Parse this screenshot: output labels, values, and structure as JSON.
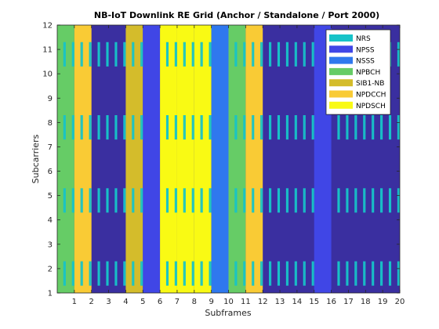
{
  "chart_data": {
    "type": "heatmap",
    "title": "NB-IoT Downlink RE Grid (Anchor / Standalone / Port 2000)",
    "xlabel": "Subframes",
    "ylabel": "Subcarriers",
    "xlim": [
      0,
      20
    ],
    "ylim": [
      1,
      12
    ],
    "xticks": [
      "1",
      "2",
      "3",
      "4",
      "5",
      "6",
      "7",
      "8",
      "9",
      "10",
      "11",
      "12",
      "13",
      "14",
      "15",
      "16",
      "17",
      "18",
      "19",
      "20"
    ],
    "yticks": [
      "1",
      "2",
      "3",
      "4",
      "5",
      "6",
      "7",
      "8",
      "9",
      "10",
      "11",
      "12"
    ],
    "legend_position": "top-right",
    "background_color": "#3a2fa0",
    "colors": {
      "NRS": "#17c3c8",
      "NPSS": "#4046e6",
      "NSSS": "#2f78ee",
      "NPBCH": "#66cc66",
      "SIB1-NB": "#d4bc2b",
      "NPDCCH": "#f9cb35",
      "NPDSCH": "#f9fa14"
    },
    "legend": [
      "NRS",
      "NPSS",
      "NSSS",
      "NPBCH",
      "SIB1-NB",
      "NPDCCH",
      "NPDSCH"
    ],
    "subframe_channels": [
      "NPBCH",
      "NPDCCH",
      "",
      "",
      "SIB1-NB",
      "NPSS",
      "NPDSCH",
      "NPDSCH",
      "NPDSCH",
      "NSSS",
      "NPBCH",
      "NPDCCH",
      "",
      "",
      "",
      "NPSS",
      "",
      "",
      "",
      ""
    ],
    "nrs_subcarrier_bands": [
      [
        1.3,
        2.3
      ],
      [
        4.3,
        5.3
      ],
      [
        7.3,
        8.3
      ],
      [
        10.3,
        11.3
      ]
    ],
    "nrs_symbols_per_subframe": [
      5,
      6,
      12,
      13
    ]
  }
}
